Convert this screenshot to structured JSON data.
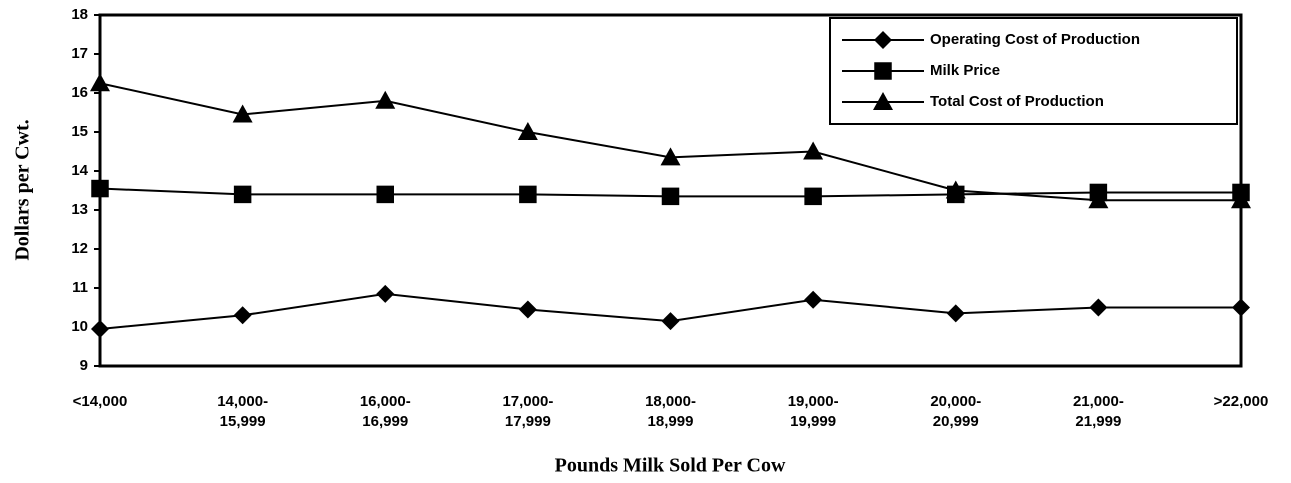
{
  "chart_data": {
    "type": "line",
    "x_label": "Pounds Milk Sold Per Cow",
    "y_label": "Dollars per Cwt.",
    "categories": [
      "<14,000",
      "14,000-\n15,999",
      "16,000-\n16,999",
      "17,000-\n17,999",
      "18,000-\n18,999",
      "19,000-\n19,999",
      "20,000-\n20,999",
      "21,000-\n21,999",
      ">22,000"
    ],
    "series": [
      {
        "name": "Operating Cost of Production",
        "color": "#000000",
        "marker": "diamond",
        "values": [
          9.95,
          10.3,
          10.85,
          10.45,
          10.15,
          10.7,
          10.35,
          10.5,
          10.5
        ]
      },
      {
        "name": "Milk Price",
        "color": "#000000",
        "marker": "square",
        "values": [
          13.55,
          13.4,
          13.4,
          13.4,
          13.35,
          13.35,
          13.4,
          13.45,
          13.45
        ]
      },
      {
        "name": "Total Cost of Production",
        "color": "#000000",
        "marker": "triangle",
        "values": [
          16.25,
          15.45,
          15.8,
          15.0,
          14.35,
          14.5,
          13.5,
          13.25,
          13.25
        ]
      }
    ],
    "ylim": [
      9,
      18
    ],
    "yticks": [
      9,
      10,
      11,
      12,
      13,
      14,
      15,
      16,
      17,
      18
    ],
    "legend": "top-right"
  }
}
